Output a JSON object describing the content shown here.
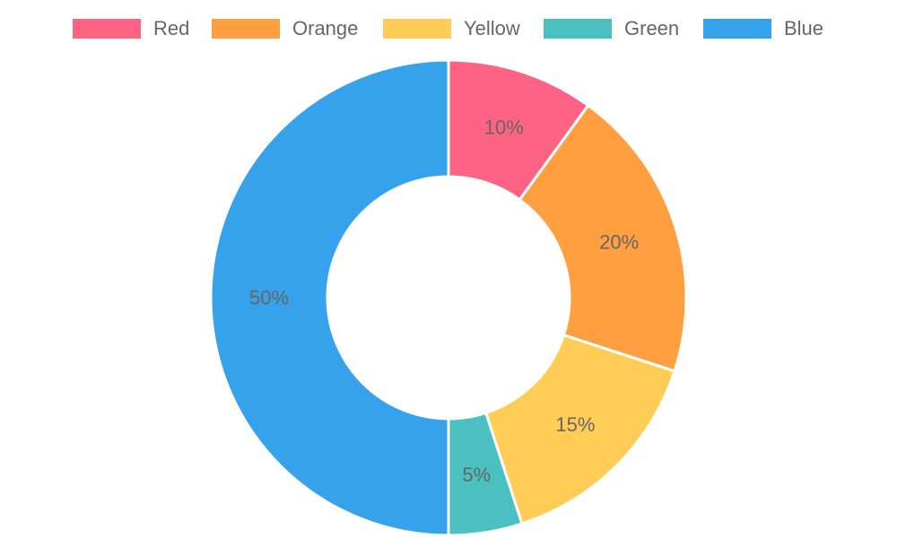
{
  "chart_data": {
    "type": "pie",
    "variant": "doughnut",
    "legend_position": "top",
    "categories": [
      "Red",
      "Orange",
      "Yellow",
      "Green",
      "Blue"
    ],
    "values": [
      10,
      20,
      15,
      5,
      50
    ],
    "data_labels": [
      "10%",
      "20%",
      "15%",
      "5%",
      "50%"
    ],
    "colors": [
      "#ff6384",
      "#ff9f40",
      "#ffcd56",
      "#4bc0c0",
      "#36a2eb"
    ]
  }
}
